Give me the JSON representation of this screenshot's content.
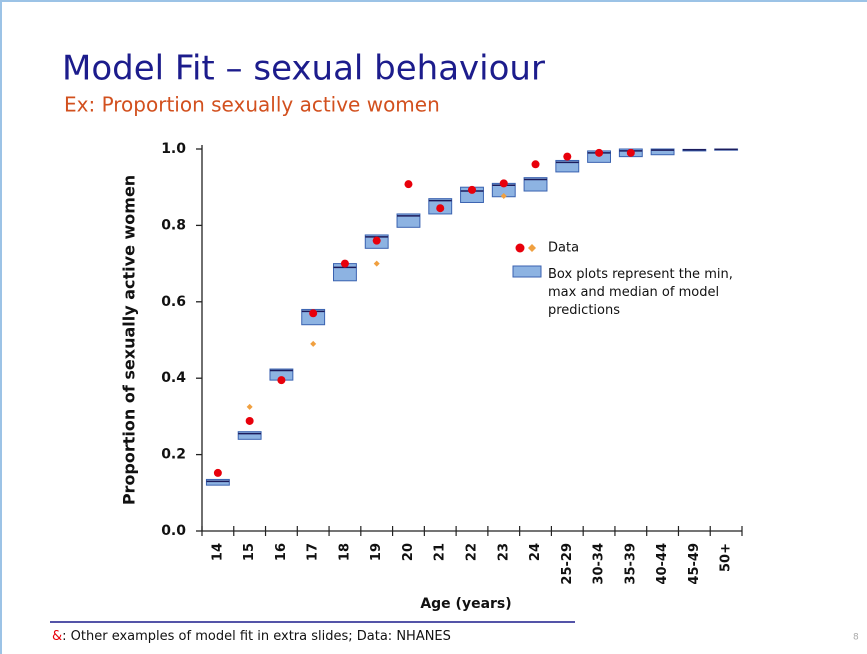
{
  "slide": {
    "title": "Model Fit – sexual behaviour",
    "subtitle": "Ex: Proportion sexually active women",
    "footnote_mark": "&",
    "footnote": ": Other examples of model fit in extra slides; Data: NHANES",
    "page_number": "8"
  },
  "chart_data": {
    "type": "box",
    "x_label": "Age (years)",
    "y_label": "Proportion of sexually active women",
    "categories": [
      "14",
      "15",
      "16",
      "17",
      "18",
      "19",
      "20",
      "21",
      "22",
      "23",
      "24",
      "25-29",
      "30-34",
      "35-39",
      "40-44",
      "45-49",
      "50+"
    ],
    "boxes": {
      "name": "Box plots represent the min, max and median of model predictions",
      "color": "#8db3e2",
      "edge_color": "#3a62b0",
      "min": [
        0.12,
        0.24,
        0.395,
        0.54,
        0.655,
        0.74,
        0.795,
        0.83,
        0.86,
        0.875,
        0.89,
        0.94,
        0.965,
        0.98,
        0.985,
        0.995,
        0.997
      ],
      "max": [
        0.135,
        0.26,
        0.424,
        0.58,
        0.7,
        0.775,
        0.83,
        0.87,
        0.9,
        0.91,
        0.925,
        0.97,
        0.995,
        1.0,
        1.0,
        0.999,
        1.0
      ],
      "median": [
        0.13,
        0.255,
        0.42,
        0.575,
        0.69,
        0.77,
        0.825,
        0.865,
        0.89,
        0.905,
        0.92,
        0.965,
        0.99,
        0.995,
        0.997,
        0.998,
        0.999
      ]
    },
    "series": [
      {
        "name": "Data",
        "color": "#e8000b",
        "marker": "circle",
        "values": [
          0.152,
          0.288,
          0.395,
          0.57,
          0.7,
          0.76,
          0.908,
          0.845,
          0.893,
          0.91,
          0.96,
          0.98,
          0.99,
          0.99,
          null,
          null,
          null
        ]
      },
      {
        "color": "#f0a040",
        "marker": "diamond",
        "values": [
          null,
          0.325,
          null,
          0.49,
          null,
          0.7,
          null,
          null,
          null,
          0.877,
          null,
          null,
          null,
          null,
          null,
          null,
          null
        ]
      }
    ],
    "ylim": [
      0,
      1
    ],
    "yticks": [
      {
        "value": 0,
        "label": "0.0"
      },
      {
        "value": 0.2,
        "label": "0.2"
      },
      {
        "value": 0.4,
        "label": "0.4"
      },
      {
        "value": 0.6,
        "label": "0.6"
      },
      {
        "value": 0.8,
        "label": "0.8"
      },
      {
        "value": 1,
        "label": "1.0"
      }
    ]
  }
}
